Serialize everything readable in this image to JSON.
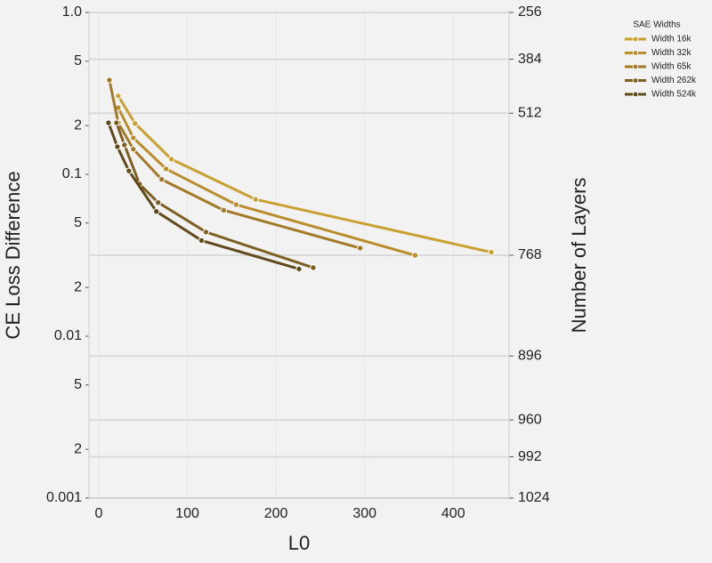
{
  "chart_data": {
    "type": "line",
    "x_label": "L0",
    "y_label": "CE Loss Difference",
    "y2_label": "Number of Layers",
    "legend_title": "SAE Widths",
    "legend_position": "outside-top-right",
    "yscale": "log",
    "grid": true,
    "xlim": [
      -11,
      463
    ],
    "xticks": [
      0,
      100,
      200,
      300,
      400
    ],
    "ylim": [
      0.001,
      1.0
    ],
    "yticks": [
      {
        "value": 1.0,
        "label": "1.0"
      },
      {
        "value": 0.5,
        "label": "5"
      },
      {
        "value": 0.2,
        "label": "2"
      },
      0.1,
      {
        "value": 0.05,
        "label": "5"
      },
      {
        "value": 0.02,
        "label": "2"
      },
      0.01,
      {
        "value": 0.005,
        "label": "5"
      },
      {
        "value": 0.002,
        "label": "2"
      },
      0.001
    ],
    "y2lim": [
      256,
      1024
    ],
    "y2ticks": [
      256,
      384,
      512,
      768,
      896,
      960,
      992,
      1024
    ],
    "series": [
      {
        "name": "Width 16k",
        "color": "#c9a032",
        "x": [
          22,
          41,
          82,
          177,
          443
        ],
        "values": [
          0.305,
          0.206,
          0.124,
          0.07,
          0.033
        ]
      },
      {
        "name": "Width 32k",
        "color": "#b98d2c",
        "x": [
          22,
          39,
          76,
          155,
          357
        ],
        "values": [
          0.258,
          0.168,
          0.108,
          0.065,
          0.0316
        ]
      },
      {
        "name": "Width 65k",
        "color": "#a27a28",
        "x": [
          12,
          22,
          39,
          71,
          141,
          295
        ],
        "values": [
          0.382,
          0.208,
          0.143,
          0.093,
          0.06,
          0.035
        ]
      },
      {
        "name": "Width 262k",
        "color": "#7d5f22",
        "x": [
          20,
          29,
          46,
          67,
          121,
          242
        ],
        "values": [
          0.208,
          0.152,
          0.087,
          0.067,
          0.044,
          0.0265
        ]
      },
      {
        "name": "Width 524k",
        "color": "#604a1c",
        "x": [
          11,
          21,
          34,
          65,
          116,
          226
        ],
        "values": [
          0.208,
          0.148,
          0.105,
          0.059,
          0.039,
          0.026
        ]
      }
    ]
  }
}
